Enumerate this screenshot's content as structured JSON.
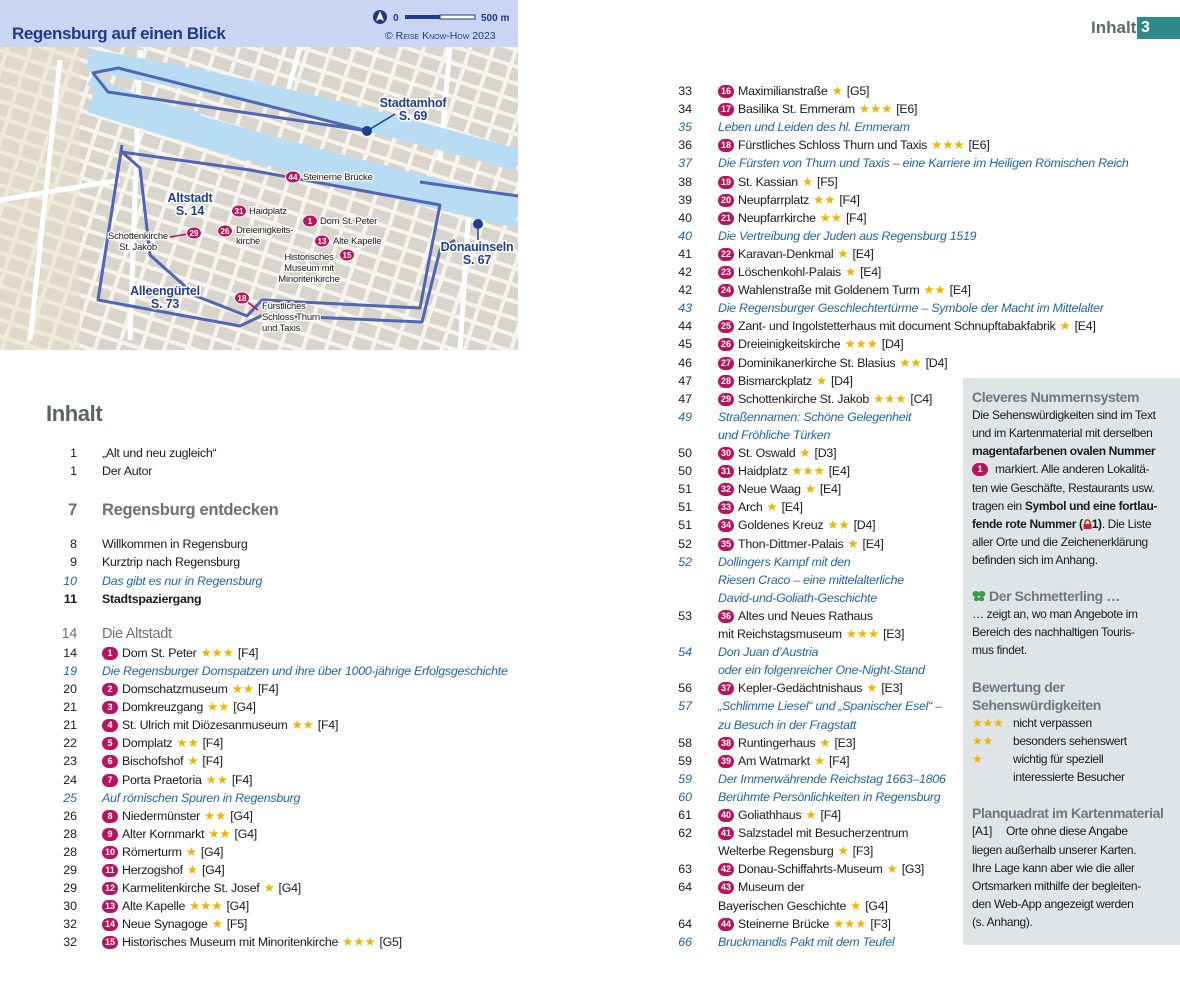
{
  "header": {
    "section": "Inhalt",
    "page": 3
  },
  "map": {
    "title": "Regensburg auf einen Blick",
    "scale_start": 0,
    "scale_end": "500 m",
    "copyright": "© Reise Know-How 2023",
    "labels": [
      {
        "lines": [
          "Stadtamhof",
          "S. 69"
        ],
        "style": "district"
      },
      {
        "lines": [
          "Altstadt",
          "S. 14"
        ],
        "style": "district"
      },
      {
        "lines": [
          "Donauinseln",
          "S. 67"
        ],
        "style": "district"
      },
      {
        "lines": [
          "Alleengürtel",
          "S. 73"
        ],
        "style": "district"
      },
      {
        "num": 44,
        "lines": [
          "Steinerne Brücke"
        ]
      },
      {
        "num": 31,
        "lines": [
          "Haidplatz"
        ]
      },
      {
        "num": 1,
        "lines": [
          "Dom St. Peter"
        ]
      },
      {
        "num": 13,
        "lines": [
          "Alte Kapelle"
        ]
      },
      {
        "num": 26,
        "lines": [
          "Dreieinigkeits-",
          "kirche"
        ]
      },
      {
        "num": 29,
        "lines": [
          "Schottenkirche",
          "St. Jakob"
        ]
      },
      {
        "num": 15,
        "lines": [
          "Historisches",
          "Museum mit",
          "Minoritenkirche"
        ]
      },
      {
        "num": 18,
        "lines": [
          "Fürstliches",
          "Schloss Thurn",
          "und Taxis"
        ]
      }
    ]
  },
  "contents": {
    "title": "Inhalt",
    "left": [
      {
        "page": 1,
        "lines": [
          "„Alt und neu zugleich“"
        ]
      },
      {
        "page": 1,
        "lines": [
          "Der Autor"
        ]
      },
      {
        "page": 7,
        "lines": [
          "Regensburg entdecken"
        ],
        "style": "h1"
      },
      {
        "page": 8,
        "lines": [
          "Willkommen in Regensburg"
        ]
      },
      {
        "page": 9,
        "lines": [
          "Kurztrip nach Regensburg"
        ]
      },
      {
        "page": 10,
        "lines": [
          "Das gibt es nur in Regensburg"
        ],
        "style": "italic"
      },
      {
        "page": 11,
        "lines": [
          "Stadtspaziergang"
        ],
        "style": "bold"
      },
      {
        "page": 14,
        "lines": [
          "Die Altstadt"
        ],
        "style": "h2"
      },
      {
        "page": 14,
        "num": 1,
        "lines": [
          "Dom St. Peter"
        ],
        "stars": "★★★",
        "ref": "[F4]"
      },
      {
        "page": 19,
        "lines": [
          "Die Regensburger Domspatzen und ihre über 1000-jährige Erfolgsgeschichte"
        ],
        "style": "italic"
      },
      {
        "page": 20,
        "num": 2,
        "lines": [
          "Domschatzmuseum"
        ],
        "stars": "★★",
        "ref": "[F4]"
      },
      {
        "page": 21,
        "num": 3,
        "lines": [
          "Domkreuzgang"
        ],
        "stars": "★★",
        "ref": "[G4]"
      },
      {
        "page": 21,
        "num": 4,
        "lines": [
          "St. Ulrich mit Diözesanmuseum"
        ],
        "stars": "★★",
        "ref": "[F4]"
      },
      {
        "page": 22,
        "num": 5,
        "lines": [
          "Domplatz"
        ],
        "stars": "★★",
        "ref": "[F4]"
      },
      {
        "page": 23,
        "num": 6,
        "lines": [
          "Bischofshof"
        ],
        "stars": "★",
        "ref": "[F4]"
      },
      {
        "page": 24,
        "num": 7,
        "lines": [
          "Porta Praetoria"
        ],
        "stars": "★★",
        "ref": "[F4]"
      },
      {
        "page": 25,
        "lines": [
          "Auf römischen Spuren in Regensburg"
        ],
        "style": "italic"
      },
      {
        "page": 26,
        "num": 8,
        "lines": [
          "Niedermünster"
        ],
        "stars": "★★",
        "ref": "[G4]"
      },
      {
        "page": 28,
        "num": 9,
        "lines": [
          "Alter Kornmarkt"
        ],
        "stars": "★★",
        "ref": "[G4]"
      },
      {
        "page": 28,
        "num": 10,
        "lines": [
          "Römerturm"
        ],
        "stars": "★",
        "ref": "[G4]"
      },
      {
        "page": 29,
        "num": 11,
        "lines": [
          "Herzogshof"
        ],
        "stars": "★",
        "ref": "[G4]"
      },
      {
        "page": 29,
        "num": 12,
        "lines": [
          "Karmelitenkirche St. Josef"
        ],
        "stars": "★",
        "ref": "[G4]"
      },
      {
        "page": 30,
        "num": 13,
        "lines": [
          "Alte Kapelle"
        ],
        "stars": "★★★",
        "ref": "[G4]"
      },
      {
        "page": 32,
        "num": 14,
        "lines": [
          "Neue Synagoge"
        ],
        "stars": "★",
        "ref": "[F5]"
      },
      {
        "page": 32,
        "num": 15,
        "lines": [
          "Historisches Museum mit Minoritenkirche"
        ],
        "stars": "★★★",
        "ref": "[G5]"
      }
    ],
    "right": [
      {
        "page": 33,
        "num": 16,
        "lines": [
          "Maximilianstraße"
        ],
        "stars": "★",
        "ref": "[G5]"
      },
      {
        "page": 34,
        "num": 17,
        "lines": [
          "Basilika St. Emmeram"
        ],
        "stars": "★★★",
        "ref": "[E6]"
      },
      {
        "page": 35,
        "lines": [
          "Leben und Leiden des hl. Emmeram"
        ],
        "style": "italic"
      },
      {
        "page": 36,
        "num": 18,
        "lines": [
          "Fürstliches Schloss Thurn und Taxis"
        ],
        "stars": "★★★",
        "ref": "[E6]"
      },
      {
        "page": 37,
        "lines": [
          "Die Fürsten von Thurn und Taxis – eine Karriere im Heiligen Römischen Reich"
        ],
        "style": "italic"
      },
      {
        "page": 38,
        "num": 19,
        "lines": [
          "St. Kassian"
        ],
        "stars": "★",
        "ref": "[F5]"
      },
      {
        "page": 39,
        "num": 20,
        "lines": [
          "Neupfarrplatz"
        ],
        "stars": "★★",
        "ref": "[F4]"
      },
      {
        "page": 40,
        "num": 21,
        "lines": [
          "Neupfarrkirche"
        ],
        "stars": "★★",
        "ref": "[F4]"
      },
      {
        "page": 40,
        "lines": [
          "Die Vertreibung der Juden aus Regensburg 1519"
        ],
        "style": "italic"
      },
      {
        "page": 41,
        "num": 22,
        "lines": [
          "Karavan-Denkmal"
        ],
        "stars": "★",
        "ref": "[E4]"
      },
      {
        "page": 42,
        "num": 23,
        "lines": [
          "Löschenkohl-Palais"
        ],
        "stars": "★",
        "ref": "[E4]"
      },
      {
        "page": 42,
        "num": 24,
        "lines": [
          "Wahlenstraße mit Goldenem Turm"
        ],
        "stars": "★★",
        "ref": "[E4]"
      },
      {
        "page": 43,
        "lines": [
          "Die Regensburger Geschlechtertürme – Symbole der Macht im Mittelalter"
        ],
        "style": "italic"
      },
      {
        "page": 44,
        "num": 25,
        "lines": [
          "Zant- und Ingolstetterhaus mit document Schnupftabakfabrik"
        ],
        "stars": "★",
        "ref": "[E4]"
      },
      {
        "page": 45,
        "num": 26,
        "lines": [
          "Dreieinigkeitskirche"
        ],
        "stars": "★★★",
        "ref": "[D4]"
      },
      {
        "page": 46,
        "num": 27,
        "lines": [
          "Dominikanerkirche St. Blasius"
        ],
        "stars": "★★",
        "ref": "[D4]"
      },
      {
        "page": 47,
        "num": 28,
        "lines": [
          "Bismarckplatz"
        ],
        "stars": "★",
        "ref": "[D4]"
      },
      {
        "page": 47,
        "num": 29,
        "lines": [
          "Schottenkirche St. Jakob"
        ],
        "stars": "★★★",
        "ref": "[C4]"
      },
      {
        "page": 49,
        "lines": [
          "Straßennamen: Schöne Gelegenheit",
          "und Fröhliche Türken"
        ],
        "style": "italic"
      },
      {
        "page": 50,
        "num": 30,
        "lines": [
          "St. Oswald"
        ],
        "stars": "★",
        "ref": "[D3]"
      },
      {
        "page": 50,
        "num": 31,
        "lines": [
          "Haidplatz"
        ],
        "stars": "★★★",
        "ref": "[E4]"
      },
      {
        "page": 51,
        "num": 32,
        "lines": [
          "Neue Waag"
        ],
        "stars": "★",
        "ref": "[E4]"
      },
      {
        "page": 51,
        "num": 33,
        "lines": [
          "Arch"
        ],
        "stars": "★",
        "ref": "[E4]"
      },
      {
        "page": 51,
        "num": 34,
        "lines": [
          "Goldenes Kreuz"
        ],
        "stars": "★★",
        "ref": "[D4]"
      },
      {
        "page": 52,
        "num": 35,
        "lines": [
          "Thon-Dittmer-Palais"
        ],
        "stars": "★",
        "ref": "[E4]"
      },
      {
        "page": 52,
        "lines": [
          "Dollingers Kampf mit den",
          "Riesen Craco – eine mittelalterliche",
          "David-und-Goliath-Geschichte"
        ],
        "style": "italic"
      },
      {
        "page": 53,
        "num": 36,
        "lines": [
          "Altes und Neues Rathaus",
          "mit Reichstagsmuseum"
        ],
        "stars": "★★★",
        "ref": "[E3]"
      },
      {
        "page": 54,
        "lines": [
          "Don Juan d’Austria",
          "oder ein folgenreicher One-Night-Stand"
        ],
        "style": "italic"
      },
      {
        "page": 56,
        "num": 37,
        "lines": [
          "Kepler-Gedächtnishaus"
        ],
        "stars": "★",
        "ref": "[E3]"
      },
      {
        "page": 57,
        "lines": [
          "„Schlimme Liesel“ und „Spanischer Esel“ –",
          "zu Besuch in der Fragstatt"
        ],
        "style": "italic"
      },
      {
        "page": 58,
        "num": 38,
        "lines": [
          "Runtingerhaus"
        ],
        "stars": "★",
        "ref": "[E3]"
      },
      {
        "page": 59,
        "num": 39,
        "lines": [
          "Am Watmarkt"
        ],
        "stars": "★",
        "ref": "[F4]"
      },
      {
        "page": 59,
        "lines": [
          "Der Immerwährende Reichstag 1663–1806"
        ],
        "style": "italic"
      },
      {
        "page": 60,
        "lines": [
          "Berühmte Persönlichkeiten in Regensburg"
        ],
        "style": "italic"
      },
      {
        "page": 61,
        "num": 40,
        "lines": [
          "Goliathhaus"
        ],
        "stars": "★",
        "ref": "[F4]"
      },
      {
        "page": 62,
        "num": 41,
        "lines": [
          "Salzstadel mit Besucherzentrum",
          "Welterbe Regensburg"
        ],
        "stars": "★",
        "ref": "[F3]"
      },
      {
        "page": 63,
        "num": 42,
        "lines": [
          "Donau-Schiffahrts-Museum"
        ],
        "stars": "★",
        "ref": "[G3]"
      },
      {
        "page": 64,
        "num": 43,
        "lines": [
          "Museum der",
          "Bayerischen Geschichte"
        ],
        "stars": "★",
        "ref": "[G4]"
      },
      {
        "page": 64,
        "num": 44,
        "lines": [
          "Steinerne Brücke"
        ],
        "stars": "★★★",
        "ref": "[F3]"
      },
      {
        "page": 66,
        "lines": [
          "Bruckmandls Pakt mit dem Teufel"
        ],
        "style": "italic"
      }
    ]
  },
  "sidebar": {
    "blocks": [
      {
        "heading": [
          "Cleveres Nummernsystem"
        ],
        "lines": [
          [
            {
              "t": "Die Sehenswürdigkeiten sind im Text"
            }
          ],
          [
            {
              "t": "und im Kartenmaterial mit derselben"
            }
          ],
          [
            {
              "t": "magentafarbenen ovalen Nummer",
              "b": true
            }
          ],
          [
            {
              "badge": 1
            },
            {
              "t": " markiert. Alle anderen Lokalitä-"
            }
          ],
          [
            {
              "t": "ten wie Geschäfte, Restaurants usw."
            }
          ],
          [
            {
              "t": "tragen ein "
            },
            {
              "t": "Symbol und eine fortlau-",
              "b": true
            }
          ],
          [
            {
              "t": "fende rote Nummer (",
              "b": true
            },
            {
              "t": "1",
              "b": true,
              "lock": true
            },
            {
              "t": ")",
              "b": true
            },
            {
              "t": ". Die Liste"
            }
          ],
          [
            {
              "t": "aller Orte und die Zeichenerklärung"
            }
          ],
          [
            {
              "t": "befinden sich im Anhang."
            }
          ]
        ]
      },
      {
        "heading": [
          "Der Schmetterling …"
        ],
        "icon": true,
        "lines": [
          [
            {
              "t": "… zeigt an, wo man Angebote im"
            }
          ],
          [
            {
              "t": "Bereich des nachhaltigen Touris-"
            }
          ],
          [
            {
              "t": "mus findet."
            }
          ]
        ]
      },
      {
        "heading": [
          "Bewertung der",
          "Sehenswürdigkeiten"
        ],
        "ratings": [
          {
            "stars": "★★★",
            "lines": [
              "nicht verpassen"
            ]
          },
          {
            "stars": "★★",
            "lines": [
              "besonders sehenswert"
            ]
          },
          {
            "stars": "★",
            "lines": [
              "wichtig für speziell",
              "interessierte Besucher"
            ]
          }
        ]
      },
      {
        "heading": [
          "Planquadrat im Kartenmaterial"
        ],
        "lines": [
          [
            {
              "t": "[A1]"
            },
            {
              "t": "Orte ohne diese Angabe",
              "tab": true
            }
          ],
          [
            {
              "t": "liegen außerhalb unserer Karten."
            }
          ],
          [
            {
              "t": "Ihre Lage kann aber wie die aller"
            }
          ],
          [
            {
              "t": "Ortsmarken mithilfe der begleiten-"
            }
          ],
          [
            {
              "t": "den Web-App angezeigt werden"
            }
          ],
          [
            {
              "t": "(s. Anhang)."
            }
          ]
        ]
      }
    ]
  }
}
